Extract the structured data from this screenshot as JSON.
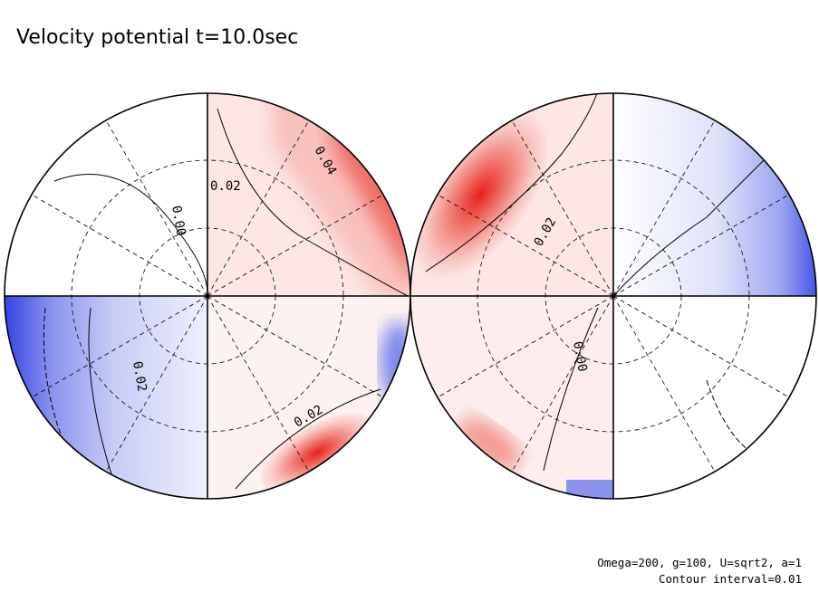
{
  "title": "Velocity potential t=10.0sec",
  "contour_labels": [
    "0.04",
    "0.02",
    "0.00",
    "0.02",
    "0.02",
    "0.02",
    "0.00"
  ],
  "footer": [
    "Omega=200, g=100, U=sqrt2, a=1",
    "Contour interval=0.01"
  ]
}
